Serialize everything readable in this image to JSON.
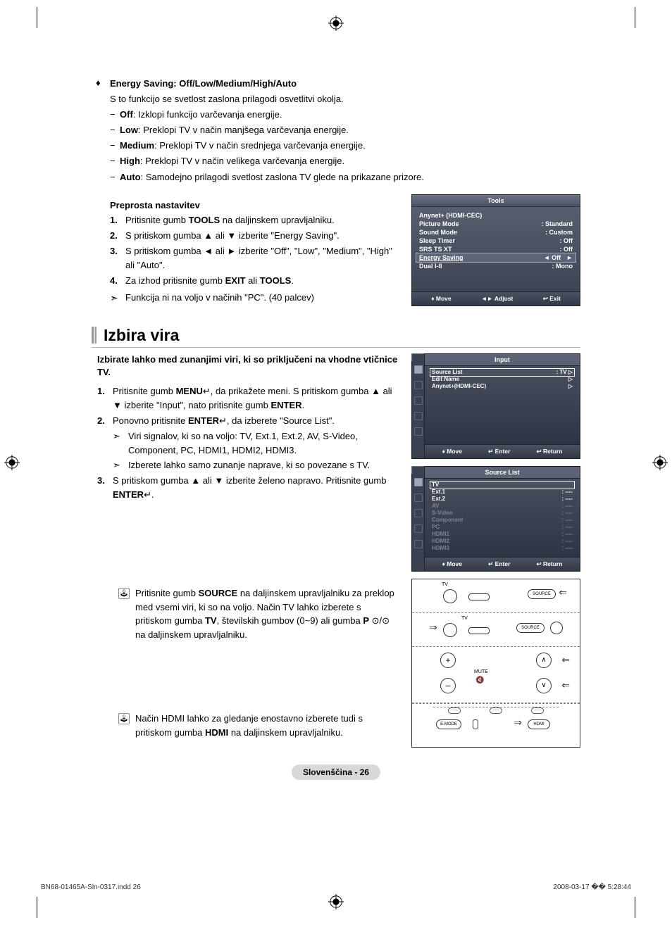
{
  "colors": {
    "osd_bg_top": "#5a6273",
    "osd_bg_bottom": "#39404e",
    "badge_bg": "#d8d8d8",
    "text": "#000000",
    "osd_text": "#ffffff"
  },
  "energy": {
    "title": "Energy Saving: Off/Low/Medium/High/Auto",
    "desc": "S to funkcijo se svetlost zaslona prilagodi osvetlitvi okolja.",
    "items": [
      {
        "k": "Off",
        "v": "Izklopi funkcijo varčevanja energije."
      },
      {
        "k": "Low",
        "v": "Preklopi TV v način manjšega varčevanja energije."
      },
      {
        "k": "Medium",
        "v": "Preklopi TV v način srednjega varčevanja energije."
      },
      {
        "k": "High",
        "v": "Preklopi TV v način velikega varčevanja energije."
      },
      {
        "k": "Auto",
        "v": "Samodejno prilagodi svetlost zaslona TV glede na prikazane prizore."
      }
    ],
    "sub": "Preprosta nastavitev",
    "steps": [
      {
        "n": "1.",
        "pre": "Pritisnite gumb ",
        "b": "TOOLS",
        "post": " na daljinskem upravljalniku."
      },
      {
        "n": "2.",
        "pre": "S pritiskom gumba ▲ ali ▼ izberite \"Energy Saving\"."
      },
      {
        "n": "3.",
        "pre": "S pritiskom gumba ◄ ali ► izberite \"Off\", \"Low\", \"Medium\", \"High\" ali \"Auto\"."
      },
      {
        "n": "4.",
        "pre": "Za izhod pritisnite gumb ",
        "b": "EXIT",
        "mid": " ali ",
        "b2": "TOOLS",
        "post": "."
      }
    ],
    "note": "Funkcija ni na voljo v načinih \"PC\". (40 palcev)"
  },
  "tools_osd": {
    "title": "Tools",
    "rows": [
      {
        "l": "Anynet+ (HDMI-CEC)",
        "r": ""
      },
      {
        "l": "Picture Mode",
        "r": ": Standard"
      },
      {
        "l": "Sound Mode",
        "r": ": Custom"
      },
      {
        "l": "Sleep Timer",
        "r": ": Off"
      },
      {
        "l": "SRS TS XT",
        "r": ": Off"
      },
      {
        "l": "Energy Saving",
        "r": "Off",
        "sel": true
      },
      {
        "l": "Dual I-II",
        "r": ": Mono"
      }
    ],
    "foot": [
      "Move",
      "Adjust",
      "Exit"
    ],
    "foot_sym": [
      "♦",
      "◄►",
      "↩"
    ]
  },
  "izbira": {
    "heading": "Izbira vira",
    "intro": "Izbirate lahko med zunanjimi viri, ki so priključeni na vhodne vtičnice TV.",
    "steps": [
      {
        "n": "1.",
        "t": "Pritisnite gumb ",
        "b": "MENU",
        "t2": ", da prikažete meni. S pritiskom gumba ▲ ali ▼ izberite \"Input\", nato pritisnite gumb ",
        "b2": "ENTER",
        "sym": "↵",
        "t3": "."
      },
      {
        "n": "2.",
        "t": "Ponovno pritisnite ",
        "b": "ENTER",
        "sym": "↵",
        "t2": ", da izberete \"Source List\".",
        "arrows": [
          "Viri signalov, ki so na voljo: TV, Ext.1, Ext.2, AV, S-Video, Component, PC, HDMI1, HDMI2, HDMI3.",
          "Izberete lahko samo zunanje naprave, ki so povezane s TV."
        ]
      },
      {
        "n": "3.",
        "t": "S pritiskom gumba ▲ ali ▼ izberite želeno napravo. Pritisnite gumb ",
        "b": "ENTER",
        "sym": "↵",
        "t2": "."
      }
    ],
    "remote1_pre": "Pritisnite gumb ",
    "remote1_b1": "SOURCE",
    "remote1_mid1": " na daljinskem upravljalniku za preklop med vsemi viri, ki so na voljo. Način TV lahko izberete s pritiskom gumba ",
    "remote1_b2": "TV",
    "remote1_mid2": ", številskih gumbov (0~9) ali gumba ",
    "remote1_b3": "P",
    "remote1_sym": " ⊙/⊙ ",
    "remote1_post": "na daljinskem upravljalniku.",
    "remote2_pre": "Način HDMI lahko za gledanje enostavno izberete tudi s pritiskom gumba ",
    "remote2_b": "HDMI",
    "remote2_post": " na daljinskem upravljalniku."
  },
  "input_osd": {
    "tv": "TV",
    "title": "Input",
    "rows": [
      {
        "l": "Source List",
        "r": ": TV",
        "hl": true
      },
      {
        "l": "Edit Name",
        "r": ""
      },
      {
        "l": "Anynet+(HDMI-CEC)",
        "r": ""
      }
    ],
    "foot": [
      "Move",
      "Enter",
      "Return"
    ],
    "foot_sym": [
      "♦",
      "↵",
      "↩"
    ]
  },
  "source_osd": {
    "tv": "TV",
    "title": "Source List",
    "rows": [
      {
        "l": "TV",
        "r": "",
        "hl": true
      },
      {
        "l": "Ext.1",
        "r": ": ----"
      },
      {
        "l": "Ext.2",
        "r": ": ----"
      },
      {
        "l": "AV",
        "r": ": ----",
        "dim": true
      },
      {
        "l": "S-Video",
        "r": ": ----",
        "dim": true
      },
      {
        "l": "Component",
        "r": ": ----",
        "dim": true
      },
      {
        "l": "PC",
        "r": ": ----",
        "dim": true
      },
      {
        "l": "HDMI1",
        "r": ": ----",
        "dim": true
      },
      {
        "l": "HDMI2",
        "r": ": ----",
        "dim": true
      },
      {
        "l": "HDMI3",
        "r": ": ----",
        "dim": true
      }
    ],
    "foot": [
      "Move",
      "Enter",
      "Return"
    ],
    "foot_sym": [
      "♦",
      "↵",
      "↩"
    ]
  },
  "remote_labels": {
    "tv": "TV",
    "source": "SOURCE",
    "mute": "MUTE",
    "emode": "E.MODE",
    "hdmi": "HDMI"
  },
  "page_badge": "Slovenščina - 26",
  "print": {
    "file": "BN68-01465A-Sln-0317.indd   26",
    "date": "2008-03-17   �� 5:28:44"
  }
}
